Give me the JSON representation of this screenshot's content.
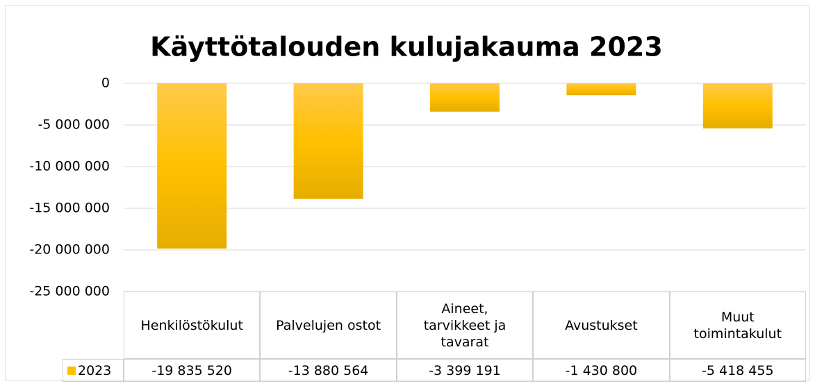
{
  "chart_data": {
    "type": "bar",
    "title": "Käyttötalouden kulujakauma 2023",
    "categories": [
      "Henkilöstökulut",
      "Palvelujen ostot",
      "Aineet, tarvikkeet ja tavarat",
      "Avustukset",
      "Muut toimintakulut"
    ],
    "series": [
      {
        "name": "2023",
        "color": "#ffc000",
        "values": [
          -19835520,
          -13880564,
          -3399191,
          -1430800,
          -5418455
        ],
        "value_labels": [
          "-19 835 520",
          "-13 880 564",
          "-3 399 191",
          "-1 430 800",
          "-5 418 455"
        ]
      }
    ],
    "ylim": [
      -25000000,
      0
    ],
    "yticks": [
      0,
      {
        "value": -5000000,
        "label": "-5 000 000"
      },
      {
        "value": -10000000,
        "label": "-10 000 000"
      },
      {
        "value": -15000000,
        "label": "-15 000 000"
      },
      {
        "value": -20000000,
        "label": "-20 000 000"
      },
      {
        "value": -25000000,
        "label": "-25 000 000"
      }
    ],
    "grid": true
  }
}
